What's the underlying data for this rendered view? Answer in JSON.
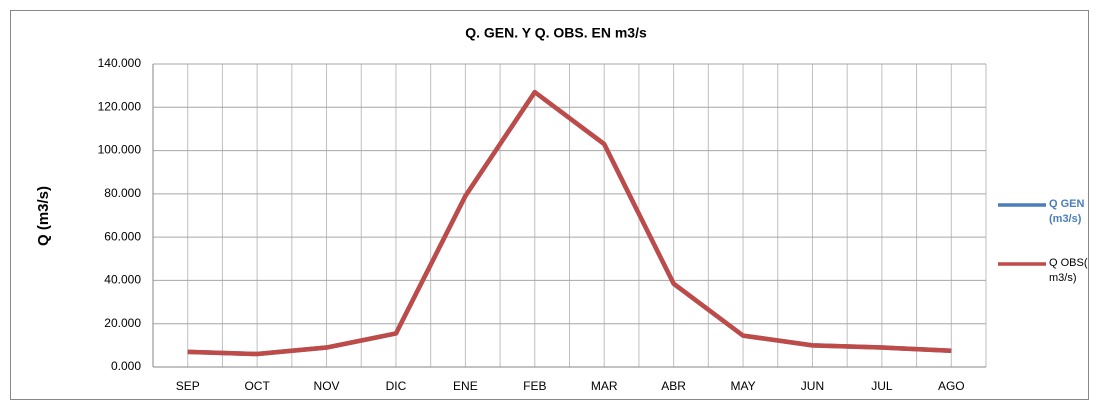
{
  "chart_data": {
    "type": "line",
    "title": "Q. GEN. Y Q. OBS. EN m3/s",
    "y_label": "Q (m3/s)",
    "categories": [
      "SEP",
      "OCT",
      "NOV",
      "DIC",
      "ENE",
      "FEB",
      "MAR",
      "ABR",
      "MAY",
      "JUN",
      "JUL",
      "AGO"
    ],
    "series": [
      {
        "name": "Q GEN (m3/s)",
        "color": "#4a7ebb",
        "values": [
          7,
          6,
          9,
          15.5,
          79,
          127,
          103,
          38.5,
          14.5,
          10,
          9,
          7.5
        ]
      },
      {
        "name": "Q OBS( m3/s)",
        "color": "#be4b48",
        "values": [
          7,
          6,
          9,
          15.5,
          79,
          127,
          103,
          38.5,
          14.5,
          10,
          9,
          7.5
        ]
      }
    ],
    "ylim": [
      0,
      140
    ],
    "yticks": [
      {
        "value": 0,
        "label": "0.000"
      },
      {
        "value": 20,
        "label": "20.000"
      },
      {
        "value": 40,
        "label": "40.000"
      },
      {
        "value": 60,
        "label": "60.000"
      },
      {
        "value": 80,
        "label": "80.000"
      },
      {
        "value": 100,
        "label": "100.000"
      },
      {
        "value": 120,
        "label": "120.000"
      },
      {
        "value": 140,
        "label": "140.000"
      }
    ],
    "grid": true
  }
}
